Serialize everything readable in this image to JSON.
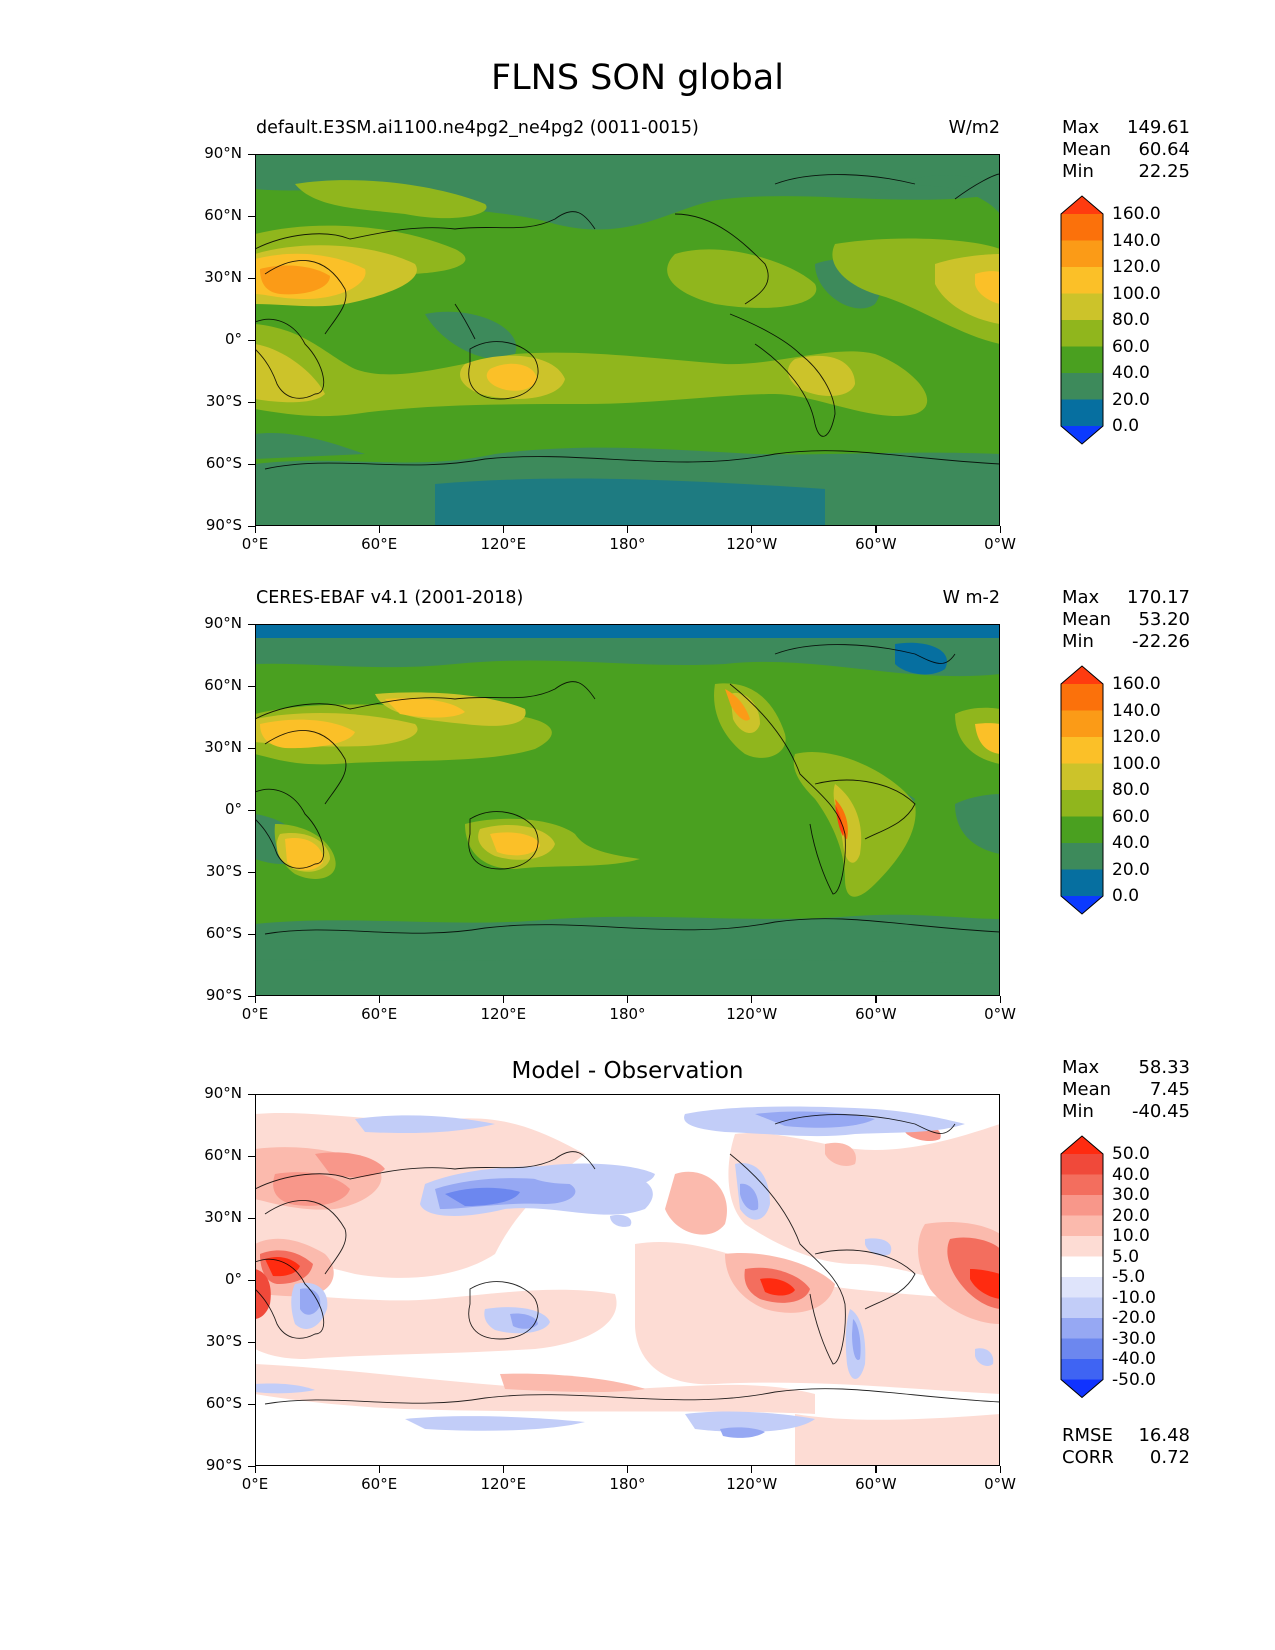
{
  "title": "FLNS SON global",
  "lat_labels": [
    "90°N",
    "60°N",
    "30°N",
    "0°",
    "30°S",
    "60°S",
    "90°S"
  ],
  "lon_labels": [
    "0°E",
    "60°E",
    "120°E",
    "180°",
    "120°W",
    "60°W",
    "0°W"
  ],
  "panels": [
    {
      "title_left": "default.E3SM.ai1100.ne4pg2_ne4pg2 (0011-0015)",
      "title_right": "W/m2",
      "title_center": "",
      "stats": [
        {
          "label": "Max",
          "value": "149.61"
        },
        {
          "label": "Mean",
          "value": "60.64"
        },
        {
          "label": "Min",
          "value": "22.25"
        }
      ],
      "colorbar_labels": [
        "160.0",
        "140.0",
        "120.0",
        "100.0",
        "80.0",
        "60.0",
        "40.0",
        "20.0",
        "0.0"
      ],
      "extra_stats": []
    },
    {
      "title_left": "CERES-EBAF v4.1 (2001-2018)",
      "title_right": "W m-2",
      "title_center": "",
      "stats": [
        {
          "label": "Max",
          "value": "170.17"
        },
        {
          "label": "Mean",
          "value": "53.20"
        },
        {
          "label": "Min",
          "value": "-22.26"
        }
      ],
      "colorbar_labels": [
        "160.0",
        "140.0",
        "120.0",
        "100.0",
        "80.0",
        "60.0",
        "40.0",
        "20.0",
        "0.0"
      ],
      "extra_stats": []
    },
    {
      "title_left": "",
      "title_right": "",
      "title_center": "Model - Observation",
      "stats": [
        {
          "label": "Max",
          "value": "58.33"
        },
        {
          "label": "Mean",
          "value": "7.45"
        },
        {
          "label": "Min",
          "value": "-40.45"
        }
      ],
      "colorbar_labels": [
        "50.0",
        "40.0",
        "30.0",
        "20.0",
        "10.0",
        "5.0",
        "-5.0",
        "-10.0",
        "-20.0",
        "-30.0",
        "-40.0",
        "-50.0"
      ],
      "extra_stats": [
        {
          "label": "RMSE",
          "value": "16.48"
        },
        {
          "label": "CORR",
          "value": "0.72"
        }
      ]
    }
  ],
  "colors": {
    "abs_scale": [
      "#0b3aff",
      "#066fa0",
      "#3d8a5b",
      "#4aa020",
      "#90b61d",
      "#ccc32a",
      "#fbc028",
      "#fb9b17",
      "#fb710b",
      "#ff3b0f"
    ],
    "diff_scale": [
      "#1033ff",
      "#3f64f3",
      "#6c87ef",
      "#96a8f3",
      "#c2cdf8",
      "#dfe4fb",
      "#ffffff",
      "#fddcd4",
      "#fbbaad",
      "#f8978a",
      "#f36e5e",
      "#f0493a",
      "#ff2b10"
    ]
  }
}
